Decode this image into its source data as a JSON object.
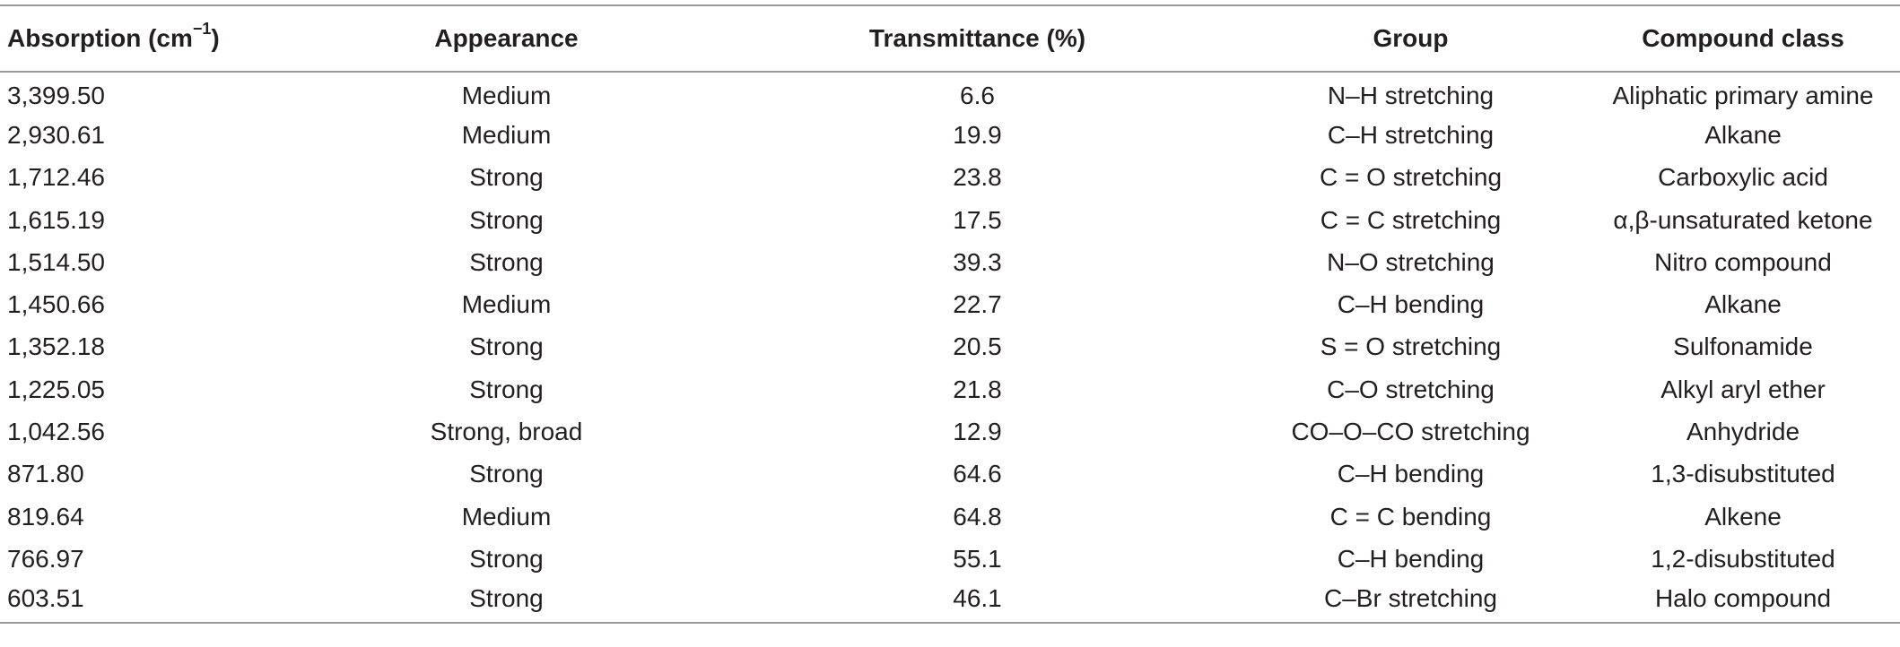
{
  "table": {
    "headers": {
      "absorption_prefix": "Absorption (cm",
      "absorption_sup": "−1",
      "absorption_suffix": ")",
      "appearance": "Appearance",
      "transmittance": "Transmittance (%)",
      "group": "Group",
      "compound_class": "Compound class"
    },
    "rows": [
      [
        "3,399.50",
        "Medium",
        "6.6",
        "N–H stretching",
        "Aliphatic primary amine"
      ],
      [
        "2,930.61",
        "Medium",
        "19.9",
        "C–H stretching",
        "Alkane"
      ],
      [
        "1,712.46",
        "Strong",
        "23.8",
        "C = O stretching",
        "Carboxylic acid"
      ],
      [
        "1,615.19",
        "Strong",
        "17.5",
        "C = C stretching",
        "α,β-unsaturated ketone"
      ],
      [
        "1,514.50",
        "Strong",
        "39.3",
        "N–O stretching",
        "Nitro compound"
      ],
      [
        "1,450.66",
        "Medium",
        "22.7",
        "C–H bending",
        "Alkane"
      ],
      [
        "1,352.18",
        "Strong",
        "20.5",
        "S = O stretching",
        "Sulfonamide"
      ],
      [
        "1,225.05",
        "Strong",
        "21.8",
        "C–O stretching",
        "Alkyl aryl ether"
      ],
      [
        "1,042.56",
        "Strong, broad",
        "12.9",
        "CO–O–CO stretching",
        "Anhydride"
      ],
      [
        "871.80",
        "Strong",
        "64.6",
        "C–H bending",
        "1,3-disubstituted"
      ],
      [
        "819.64",
        "Medium",
        "64.8",
        "C = C bending",
        "Alkene"
      ],
      [
        "766.97",
        "Strong",
        "55.1",
        "C–H bending",
        "1,2-disubstituted"
      ],
      [
        "603.51",
        "Strong",
        "46.1",
        "C–Br stretching",
        "Halo compound"
      ]
    ]
  }
}
